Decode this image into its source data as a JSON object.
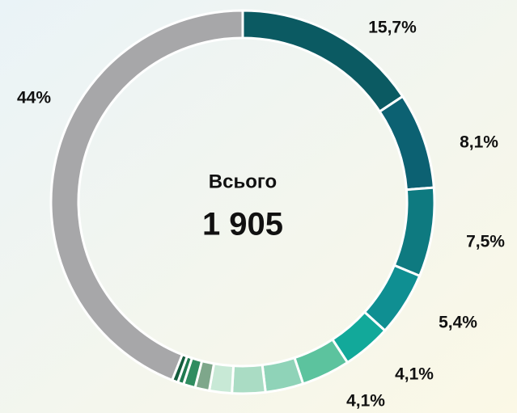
{
  "chart_data": {
    "type": "donut",
    "center_title": "Всього",
    "center_value": "1 905",
    "values": [
      15.7,
      8.1,
      7.5,
      5.4,
      4.1,
      4.1,
      3.2,
      2.8,
      1.9,
      1.2,
      1.0,
      0.5,
      0.5,
      44
    ],
    "value_labels": [
      "15,7%",
      "8,1%",
      "7,5%",
      "5,4%",
      "4,1%",
      "4,1%",
      null,
      null,
      null,
      null,
      null,
      null,
      null,
      "44%"
    ],
    "colors": [
      "#0b5a62",
      "#0c6172",
      "#0e7a80",
      "#0f8f92",
      "#12a99a",
      "#5cc39e",
      "#8fd3b8",
      "#aadcc4",
      "#c8e9d6",
      "#7ea78b",
      "#2f8c60",
      "#1f7a50",
      "#145c3d",
      "#a7a7a9"
    ]
  }
}
